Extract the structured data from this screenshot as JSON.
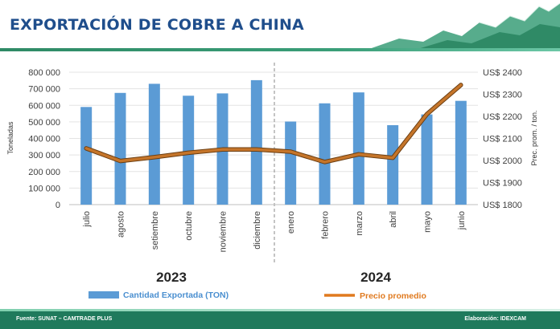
{
  "title": "EXPORTACIÓN DE COBRE A CHINA",
  "footer": {
    "source": "Fuente: SUNAT – CAMTRADE PLUS",
    "credit": "Elaboración: IDEXCAM"
  },
  "colors": {
    "bars": "#5b9bd5",
    "line": "#c5752a",
    "title": "#1f4e8c",
    "footer": "#1f7a5c"
  },
  "chart_data": {
    "type": "bar",
    "categories": [
      "julio",
      "agosto",
      "setiembre",
      "octubre",
      "noviembre",
      "diciembre",
      "enero",
      "febrero",
      "marzo",
      "abril",
      "mayo",
      "junio"
    ],
    "year_groups": [
      {
        "label": "2023",
        "from": 0,
        "to": 5
      },
      {
        "label": "2024",
        "from": 6,
        "to": 11
      }
    ],
    "series": [
      {
        "name": "Cantidad Exportada (TON)",
        "type": "bar",
        "axis": "left",
        "color": "#5b9bd5",
        "values": [
          590000,
          675000,
          730000,
          658000,
          672000,
          752000,
          502000,
          612000,
          678000,
          480000,
          545000,
          627000
        ]
      },
      {
        "name": "Precio promedio",
        "type": "line",
        "axis": "right",
        "color": "#c5752a",
        "values": [
          2055,
          1998,
          2015,
          2035,
          2050,
          2050,
          2040,
          1993,
          2028,
          2012,
          2210,
          2342
        ]
      }
    ],
    "y_left": {
      "label": "Toneladas",
      "min": 0,
      "max": 800000,
      "ticks": [
        "0",
        "100 000",
        "200 000",
        "300 000",
        "400 000",
        "500 000",
        "600 000",
        "700 000",
        "800 000"
      ]
    },
    "y_right": {
      "label": "Prec. prom. / ton.",
      "min": 1800,
      "max": 2400,
      "ticks": [
        "US$ 1800",
        "US$ 1900",
        "US$ 2000",
        "US$ 2100",
        "US$ 2200",
        "US$ 2300",
        "US$ 2400"
      ]
    },
    "grid": true,
    "legend": "bottom"
  }
}
